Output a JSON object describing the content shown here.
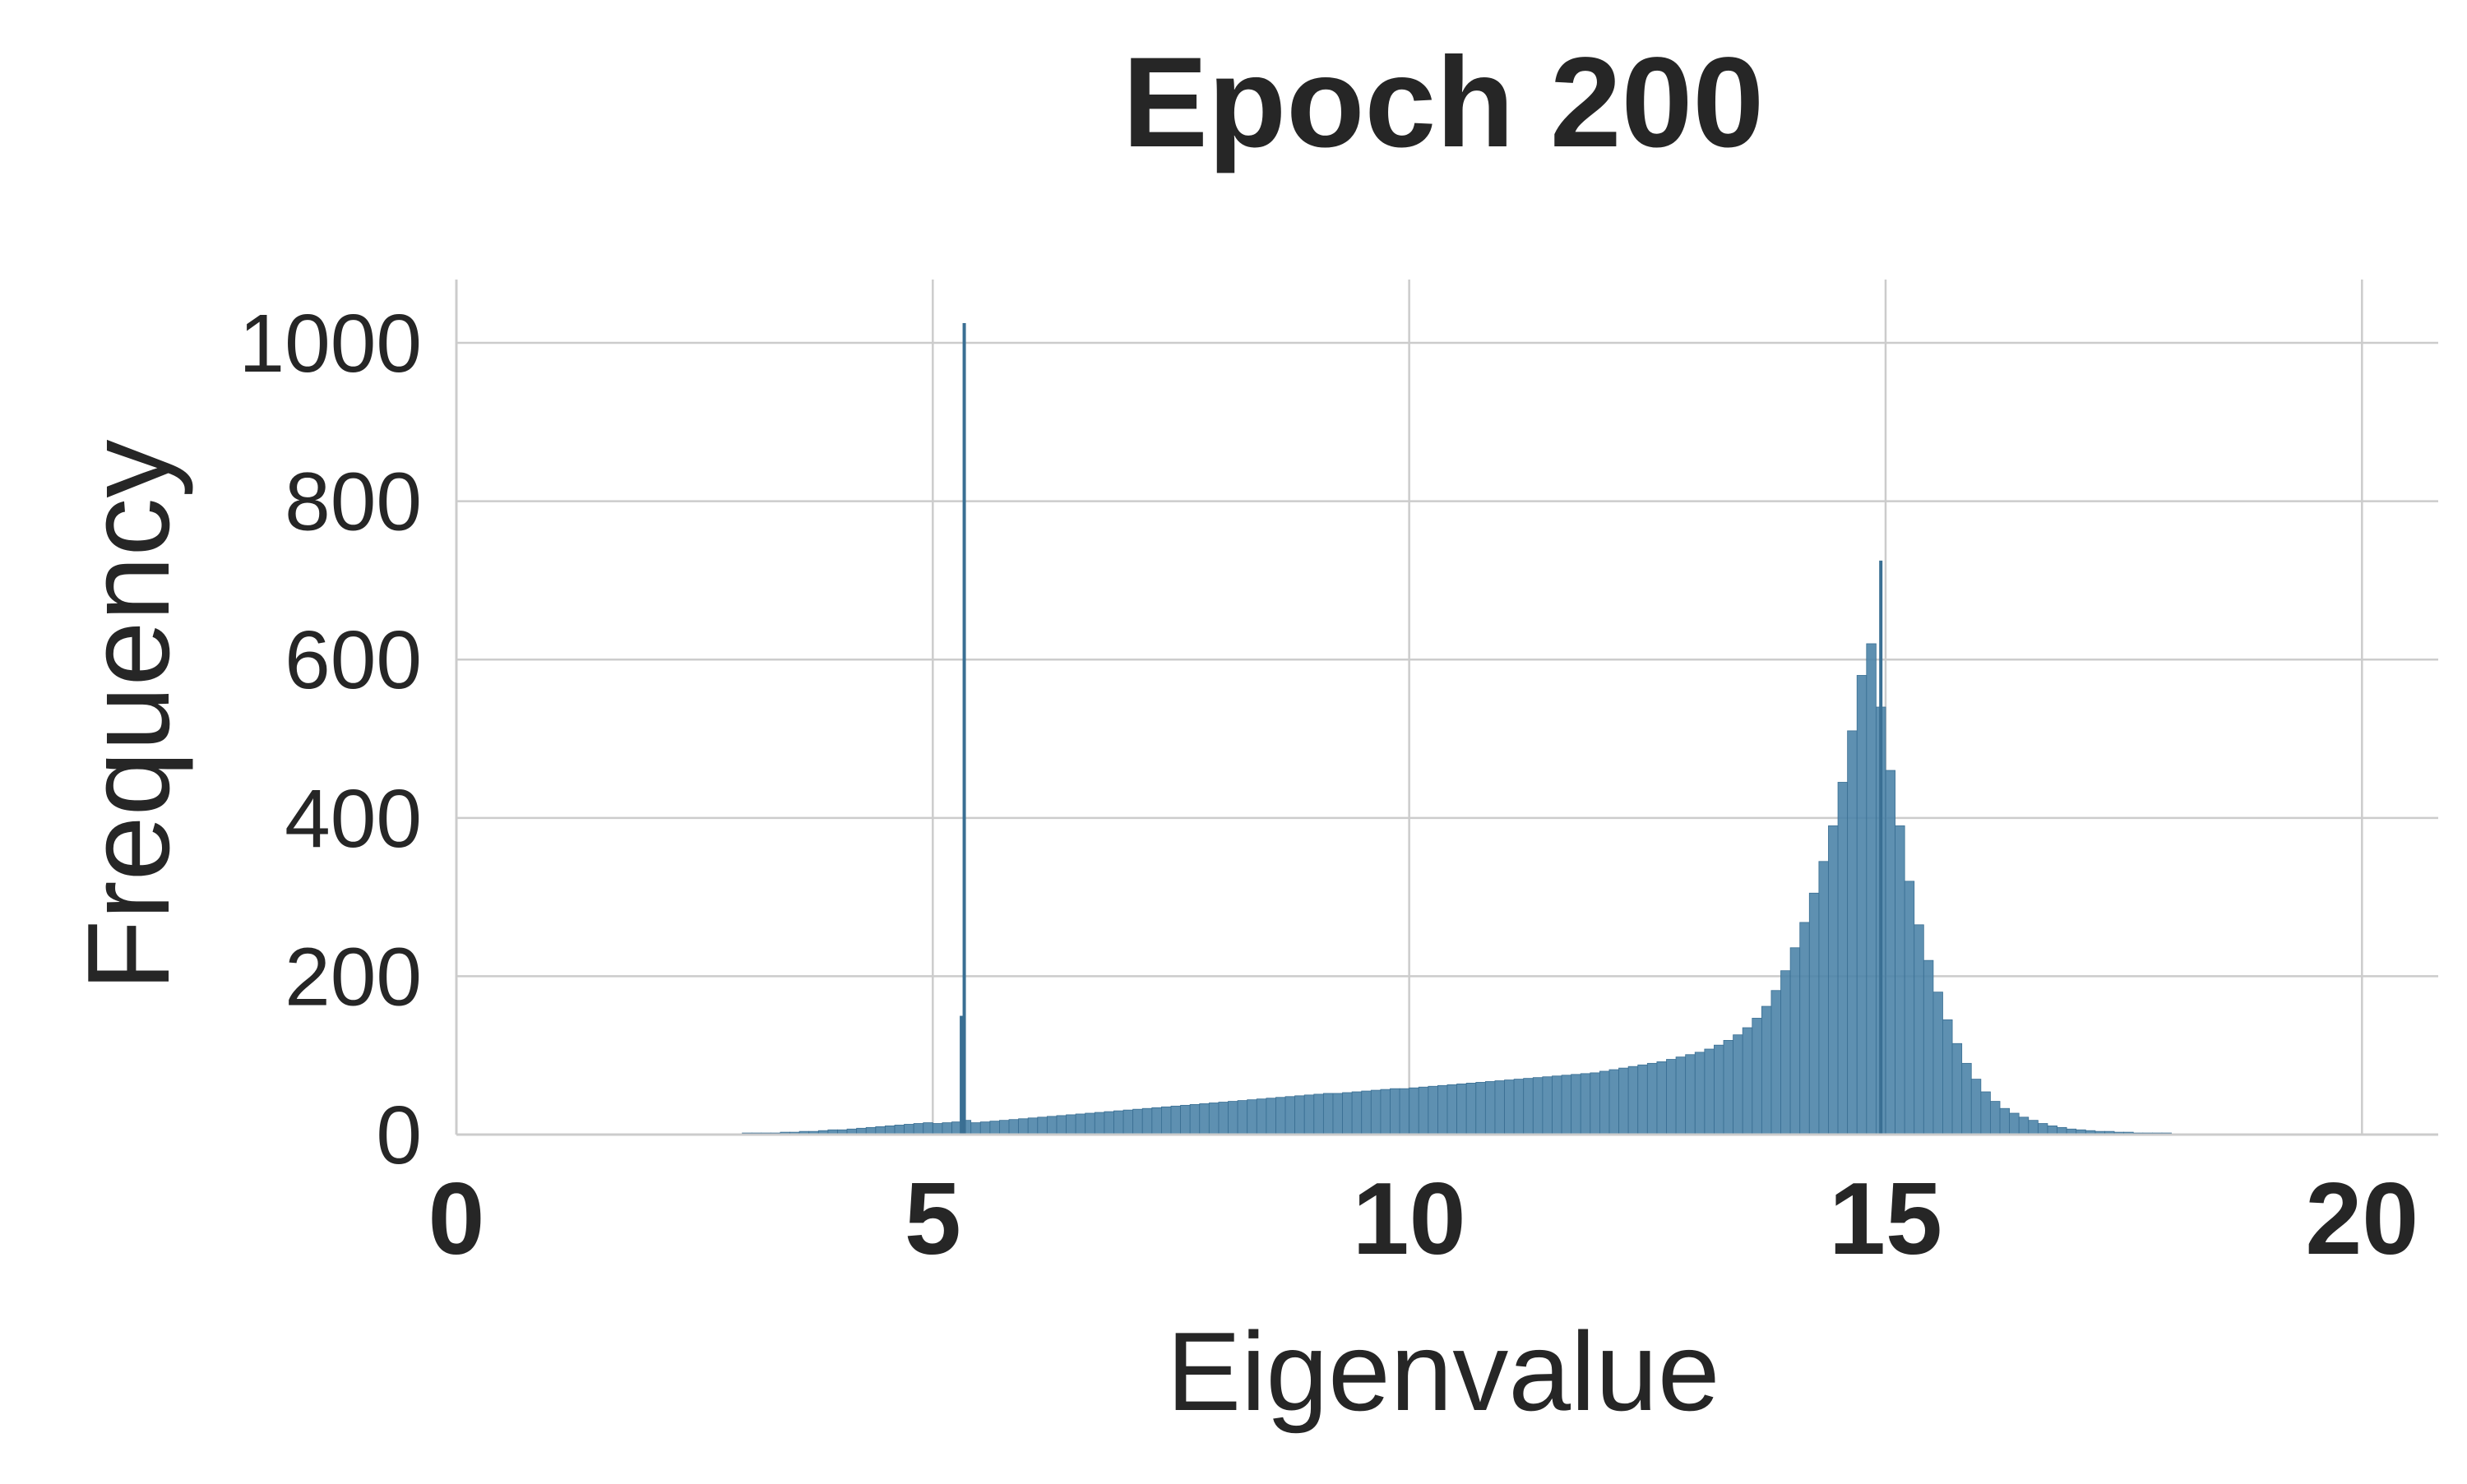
{
  "chart_data": {
    "type": "histogram",
    "title": "Epoch 200",
    "xlabel": "Eigenvalue",
    "ylabel": "Frequency",
    "xlim": [
      0,
      20.8
    ],
    "ylim": [
      0,
      1080
    ],
    "xticks": [
      0,
      5,
      10,
      15,
      20
    ],
    "yticks": [
      0,
      200,
      400,
      600,
      800,
      1000
    ],
    "grid": true,
    "bar_color": "#4c84a8",
    "bar_edge_color": "#3a6f93",
    "bin_width": 0.1,
    "bins_x": [
      2.5,
      2.6,
      2.7,
      2.8,
      2.9,
      3.0,
      3.1,
      3.2,
      3.3,
      3.4,
      3.5,
      3.6,
      3.7,
      3.8,
      3.9,
      4.0,
      4.1,
      4.2,
      4.3,
      4.4,
      4.5,
      4.6,
      4.7,
      4.8,
      4.9,
      5.0,
      5.1,
      5.2,
      5.3,
      5.4,
      5.5,
      5.6,
      5.7,
      5.8,
      5.9,
      6.0,
      6.1,
      6.2,
      6.3,
      6.4,
      6.5,
      6.6,
      6.7,
      6.8,
      6.9,
      7.0,
      7.1,
      7.2,
      7.3,
      7.4,
      7.5,
      7.6,
      7.7,
      7.8,
      7.9,
      8.0,
      8.1,
      8.2,
      8.3,
      8.4,
      8.5,
      8.6,
      8.7,
      8.8,
      8.9,
      9.0,
      9.1,
      9.2,
      9.3,
      9.4,
      9.5,
      9.6,
      9.7,
      9.8,
      9.9,
      10.0,
      10.1,
      10.2,
      10.3,
      10.4,
      10.5,
      10.6,
      10.7,
      10.8,
      10.9,
      11.0,
      11.1,
      11.2,
      11.3,
      11.4,
      11.5,
      11.6,
      11.7,
      11.8,
      11.9,
      12.0,
      12.1,
      12.2,
      12.3,
      12.4,
      12.5,
      12.6,
      12.7,
      12.8,
      12.9,
      13.0,
      13.1,
      13.2,
      13.3,
      13.4,
      13.5,
      13.6,
      13.7,
      13.8,
      13.9,
      14.0,
      14.1,
      14.2,
      14.3,
      14.4,
      14.5,
      14.6,
      14.7,
      14.8,
      14.9,
      15.0,
      15.1,
      15.2,
      15.3,
      15.4,
      15.5,
      15.6,
      15.7,
      15.8,
      15.9,
      16.0,
      16.1,
      16.2,
      16.3,
      16.4,
      16.5,
      16.6,
      16.7,
      16.8,
      16.9,
      17.0,
      17.1,
      17.2,
      17.3,
      17.4,
      17.5,
      17.6,
      17.7,
      17.8,
      17.9,
      18.0,
      18.1,
      18.2,
      18.3,
      18.4,
      18.5,
      18.6,
      18.7,
      18.8,
      18.9
    ],
    "bins_y": [
      1,
      1,
      1,
      1,
      1,
      2,
      2,
      2,
      2,
      3,
      3,
      4,
      4,
      5,
      6,
      6,
      7,
      8,
      9,
      10,
      11,
      12,
      13,
      14,
      15,
      14,
      15,
      16,
      18,
      15,
      16,
      17,
      18,
      19,
      20,
      21,
      22,
      23,
      24,
      25,
      26,
      27,
      28,
      29,
      30,
      31,
      32,
      33,
      34,
      35,
      36,
      37,
      38,
      39,
      40,
      41,
      42,
      43,
      44,
      45,
      46,
      47,
      48,
      49,
      50,
      51,
      52,
      52,
      53,
      54,
      55,
      56,
      57,
      58,
      58,
      59,
      60,
      61,
      62,
      63,
      64,
      65,
      66,
      67,
      68,
      69,
      70,
      71,
      72,
      73,
      74,
      75,
      76,
      77,
      78,
      80,
      82,
      84,
      86,
      88,
      90,
      92,
      95,
      98,
      101,
      104,
      108,
      113,
      119,
      126,
      135,
      147,
      162,
      182,
      207,
      236,
      268,
      305,
      345,
      390,
      445,
      510,
      580,
      620,
      540,
      460,
      390,
      320,
      265,
      220,
      180,
      145,
      115,
      90,
      70,
      54,
      42,
      33,
      27,
      22,
      18,
      14,
      11,
      9,
      7,
      6,
      5,
      4,
      4,
      3,
      3,
      2,
      2,
      2,
      2,
      1,
      1,
      1,
      1,
      1
    ],
    "spikes": [
      {
        "x": 5.33,
        "value": 1025
      },
      {
        "x": 5.3,
        "value": 150
      },
      {
        "x": 14.95,
        "value": 725
      }
    ]
  }
}
